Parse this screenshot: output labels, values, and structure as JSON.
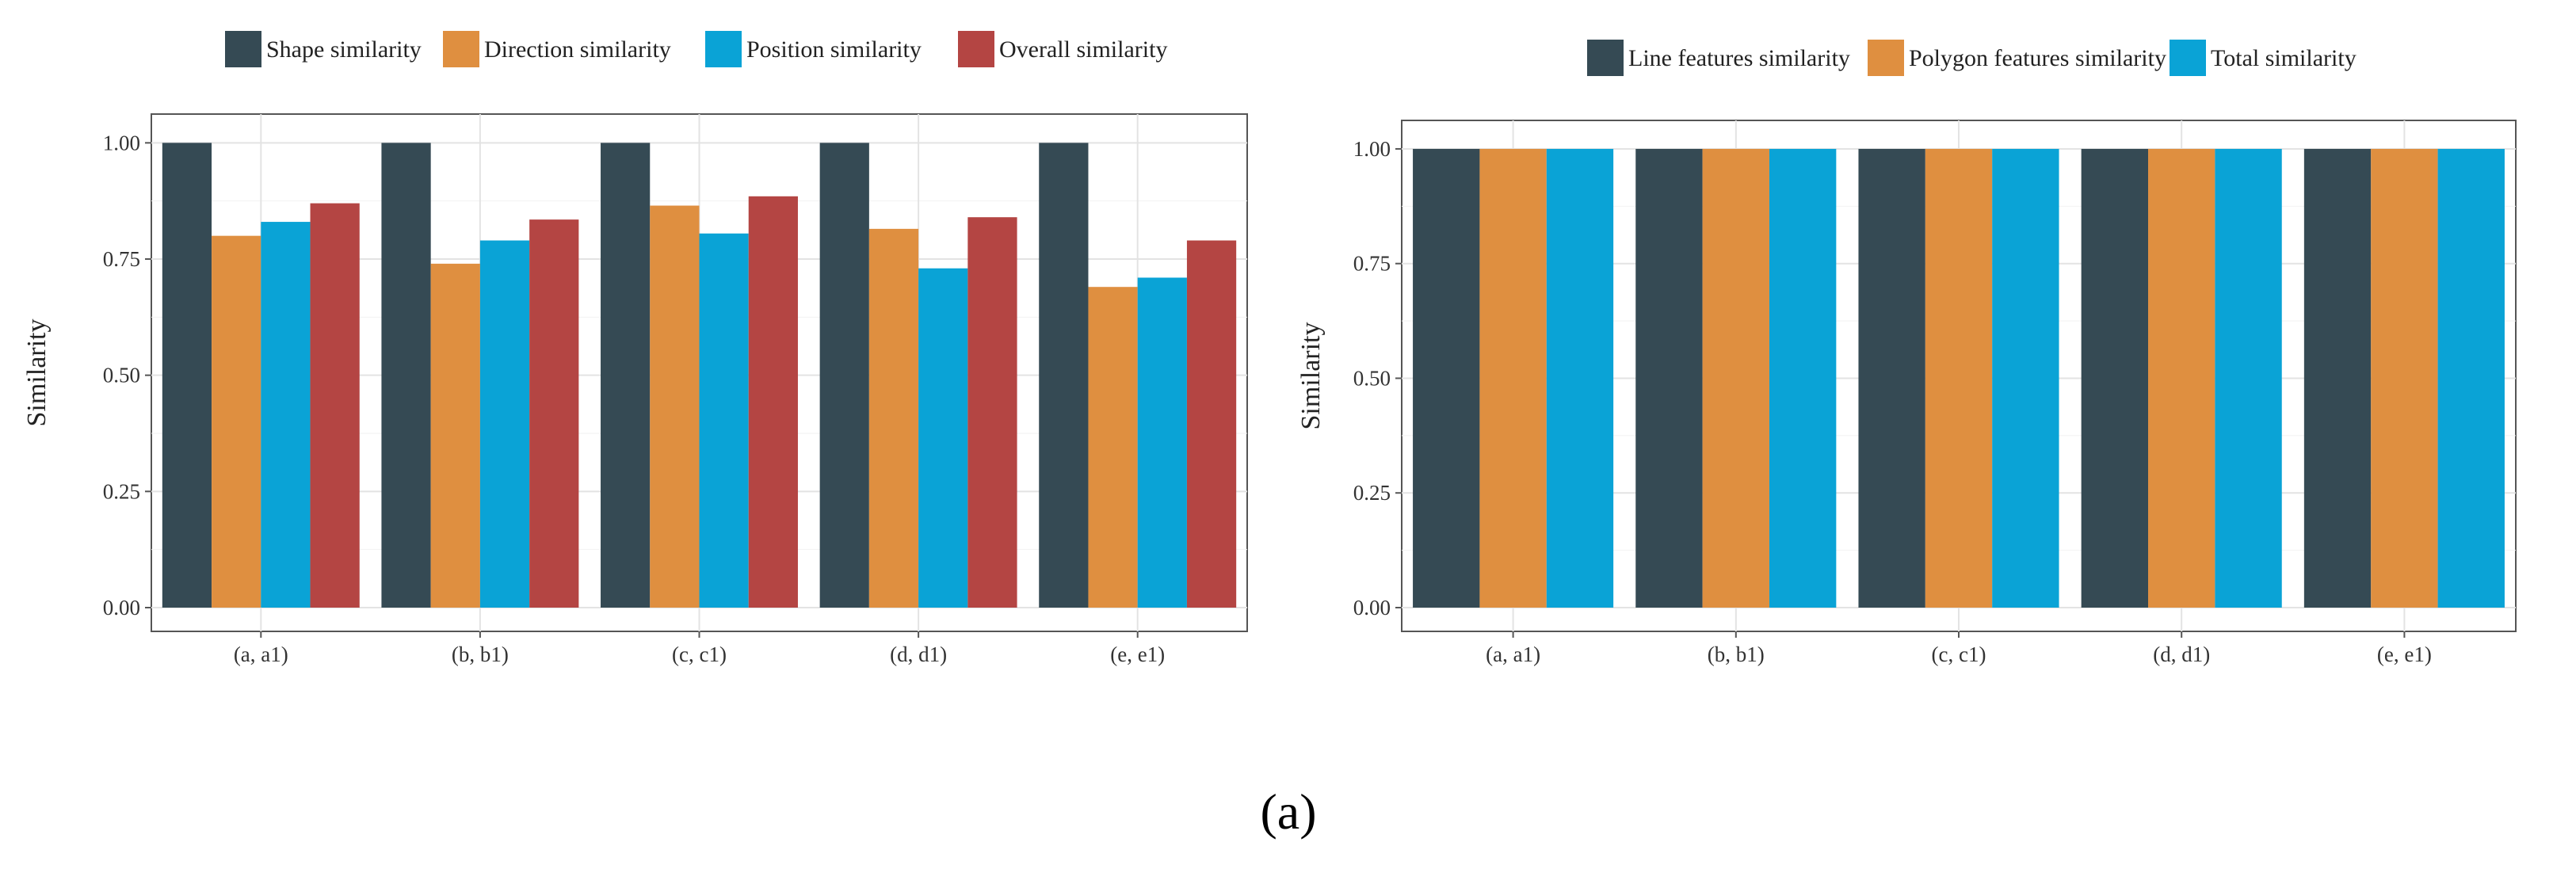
{
  "figure": {
    "caption": "(a)"
  },
  "chart_data": [
    {
      "type": "bar",
      "title": "",
      "xlabel": "",
      "ylabel": "Similarity",
      "ylim": [
        0,
        1.05
      ],
      "yticks": [
        "0.00",
        "0.25",
        "0.50",
        "0.75",
        "1.00"
      ],
      "ytick_values": [
        0,
        0.25,
        0.5,
        0.75,
        1.0
      ],
      "grid": true,
      "legend_position": "top",
      "categories": [
        "(a, a1)",
        "(b, b1)",
        "(c, c1)",
        "(d, d1)",
        "(e, e1)"
      ],
      "series": [
        {
          "name": "Shape similarity",
          "color": "#354a54",
          "values": [
            1.0,
            1.0,
            1.0,
            1.0,
            1.0
          ]
        },
        {
          "name": "Direction similarity",
          "color": "#df8f40",
          "values": [
            0.8,
            0.74,
            0.865,
            0.815,
            0.69
          ]
        },
        {
          "name": "Position similarity",
          "color": "#0aa3d6",
          "values": [
            0.83,
            0.79,
            0.805,
            0.73,
            0.71
          ]
        },
        {
          "name": "Overall similarity",
          "color": "#b44543",
          "values": [
            0.87,
            0.835,
            0.885,
            0.84,
            0.79
          ]
        }
      ]
    },
    {
      "type": "bar",
      "title": "",
      "xlabel": "",
      "ylabel": "Similarity",
      "ylim": [
        0,
        1.05
      ],
      "yticks": [
        "0.00",
        "0.25",
        "0.50",
        "0.75",
        "1.00"
      ],
      "ytick_values": [
        0,
        0.25,
        0.5,
        0.75,
        1.0
      ],
      "grid": true,
      "legend_position": "top",
      "categories": [
        "(a, a1)",
        "(b, b1)",
        "(c, c1)",
        "(d, d1)",
        "(e, e1)"
      ],
      "series": [
        {
          "name": "Line features similarity",
          "color": "#354a54",
          "values": [
            1.0,
            1.0,
            1.0,
            1.0,
            1.0
          ]
        },
        {
          "name": "Polygon features similarity",
          "color": "#df8f40",
          "values": [
            1.0,
            1.0,
            1.0,
            1.0,
            1.0
          ]
        },
        {
          "name": "Total similarity",
          "color": "#0aa3d6",
          "values": [
            1.0,
            1.0,
            1.0,
            1.0,
            1.0
          ]
        }
      ]
    }
  ]
}
